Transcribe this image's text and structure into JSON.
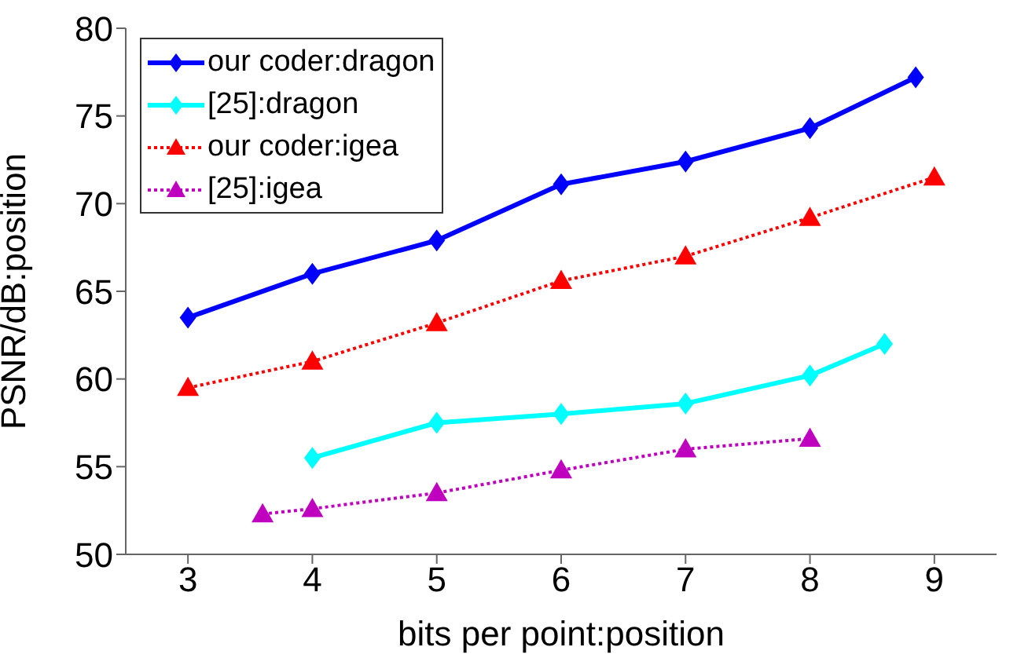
{
  "chart_data": {
    "type": "line",
    "xlabel": "bits per point:position",
    "ylabel": "PSNR/dB:position",
    "xlim": [
      2.5,
      9.5
    ],
    "xticks": [
      3,
      4,
      5,
      6,
      7,
      8,
      9
    ],
    "ylim": [
      50,
      80
    ],
    "yticks": [
      50,
      55,
      60,
      65,
      70,
      75,
      80
    ],
    "grid": false,
    "legend": "top left",
    "series": [
      {
        "name": "our coder:dragon",
        "color": "#0000ff",
        "marker": "diamond",
        "line_style": "solid",
        "x": [
          3,
          4,
          5,
          6,
          7,
          8,
          8.85
        ],
        "values": [
          63.5,
          66,
          67.9,
          71.1,
          72.4,
          74.3,
          77.2
        ]
      },
      {
        "name": "[25]:dragon",
        "color": "#00ffff",
        "marker": "diamond",
        "line_style": "solid",
        "x": [
          4,
          5,
          6,
          7,
          8,
          8.6
        ],
        "values": [
          55.5,
          57.5,
          58,
          58.6,
          60.2,
          62
        ]
      },
      {
        "name": "our coder:igea",
        "color": "#ff0000",
        "marker": "triangle",
        "line_style": "dotted",
        "x": [
          3,
          4,
          5,
          6,
          7,
          8,
          9
        ],
        "values": [
          59.5,
          61,
          63.2,
          65.6,
          67,
          69.2,
          71.5
        ]
      },
      {
        "name": "[25]:igea",
        "color": "#bf00bf",
        "marker": "triangle",
        "line_style": "dotted",
        "x": [
          3.6,
          4,
          5,
          6,
          7,
          8
        ],
        "values": [
          52.3,
          52.6,
          53.5,
          54.8,
          56,
          56.6
        ]
      }
    ]
  }
}
